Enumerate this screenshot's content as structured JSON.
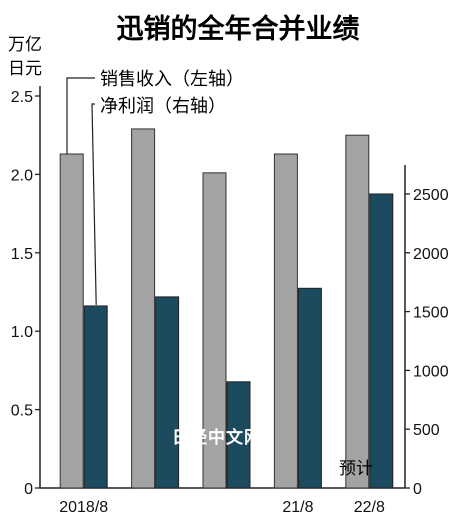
{
  "title": "迅销的全年合并业绩",
  "left_unit": [
    "万亿",
    "日元"
  ],
  "estimate_label": "预计",
  "watermark": "日经中文网",
  "colors": {
    "revenue": "#a3a3a3",
    "profit": "#1c4a5e",
    "axis": "#222222"
  },
  "chart_data": {
    "type": "bar",
    "categories": [
      "2018/8",
      "",
      "",
      "21/8",
      "22/8"
    ],
    "series": [
      {
        "name": "销售收入（左轴）",
        "axis": "left",
        "values": [
          2.13,
          2.29,
          2.01,
          2.13,
          2.25
        ]
      },
      {
        "name": "净利润（右轴）",
        "axis": "right",
        "values": [
          1548,
          1625,
          903,
          1698,
          2500
        ]
      }
    ],
    "y_left": {
      "min": 0,
      "max": 2.5,
      "ticks": [
        "0",
        "0.5",
        "1.0",
        "1.5",
        "2.0",
        "2.5"
      ]
    },
    "y_right": {
      "min": 0,
      "max": 3333,
      "ticks": [
        "0",
        "500",
        "1000",
        "1500",
        "2000",
        "2500"
      ],
      "tick_values": [
        0,
        500,
        1000,
        1500,
        2000,
        2500
      ]
    },
    "grid": false,
    "legend": "top-left"
  }
}
